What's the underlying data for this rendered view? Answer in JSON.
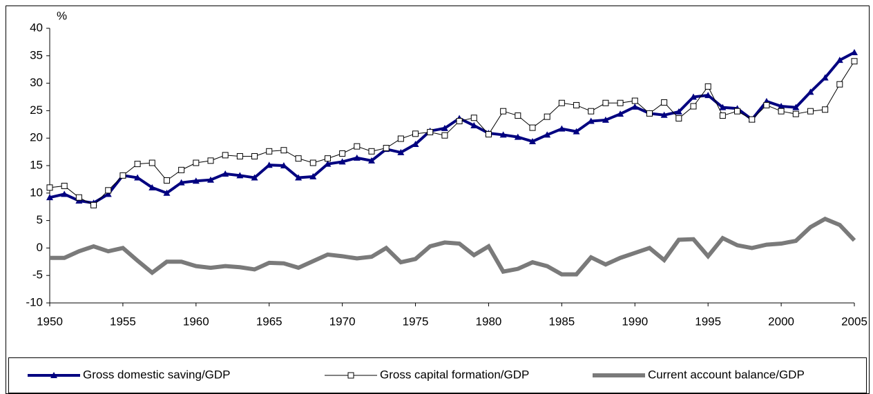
{
  "chart_data": {
    "type": "line",
    "y_label": "%",
    "x": [
      1950,
      1951,
      1952,
      1953,
      1954,
      1955,
      1956,
      1957,
      1958,
      1959,
      1960,
      1961,
      1962,
      1963,
      1964,
      1965,
      1966,
      1967,
      1968,
      1969,
      1970,
      1971,
      1972,
      1973,
      1974,
      1975,
      1976,
      1977,
      1978,
      1979,
      1980,
      1981,
      1982,
      1983,
      1984,
      1985,
      1986,
      1987,
      1988,
      1989,
      1990,
      1991,
      1992,
      1993,
      1994,
      1995,
      1996,
      1997,
      1998,
      1999,
      2000,
      2001,
      2002,
      2003,
      2004,
      2005
    ],
    "xlim": [
      1950,
      2005
    ],
    "xticks": [
      1950,
      1955,
      1960,
      1965,
      1970,
      1975,
      1980,
      1985,
      1990,
      1995,
      2000,
      2005
    ],
    "ylim": [
      -10,
      40
    ],
    "yticks": [
      -10,
      -5,
      0,
      5,
      10,
      15,
      20,
      25,
      30,
      35,
      40
    ],
    "legend": "bottom",
    "series": [
      {
        "name": "Gross domestic saving/GDP",
        "color": "#000080",
        "marker": "triangle",
        "values": [
          9.2,
          9.8,
          8.6,
          8.2,
          9.8,
          13.2,
          12.8,
          11.0,
          10.0,
          11.9,
          12.2,
          12.4,
          13.5,
          13.2,
          12.8,
          15.1,
          15.0,
          12.8,
          13.0,
          15.3,
          15.7,
          16.4,
          15.9,
          18.0,
          17.4,
          18.9,
          21.3,
          21.8,
          23.6,
          22.3,
          20.9,
          20.6,
          20.2,
          19.4,
          20.6,
          21.7,
          21.2,
          23.1,
          23.3,
          24.4,
          25.7,
          24.5,
          24.2,
          24.8,
          27.5,
          27.8,
          25.6,
          25.4,
          23.4,
          26.7,
          25.8,
          25.6,
          28.4,
          31.0,
          34.2,
          35.6
        ]
      },
      {
        "name": "Gross capital formation/GDP",
        "color": "#000000",
        "marker": "square",
        "values": [
          11.0,
          11.3,
          9.2,
          7.8,
          10.5,
          13.2,
          15.3,
          15.5,
          12.3,
          14.2,
          15.5,
          15.9,
          16.9,
          16.7,
          16.7,
          17.6,
          17.8,
          16.3,
          15.5,
          16.3,
          17.2,
          18.5,
          17.6,
          18.2,
          19.9,
          20.8,
          21.1,
          20.5,
          23.1,
          23.7,
          20.7,
          24.9,
          24.1,
          21.9,
          23.9,
          26.4,
          26.0,
          24.9,
          26.4,
          26.4,
          26.8,
          24.5,
          26.5,
          23.6,
          25.8,
          29.4,
          24.1,
          24.9,
          23.4,
          26.0,
          24.9,
          24.4,
          24.9,
          25.2,
          29.8,
          34.0
        ]
      },
      {
        "name": "Current account balance/GDP",
        "color": "#7a7a7a",
        "marker": "none",
        "values": [
          -1.8,
          -1.8,
          -0.6,
          0.3,
          -0.6,
          0.0,
          -2.3,
          -4.5,
          -2.5,
          -2.5,
          -3.3,
          -3.6,
          -3.3,
          -3.5,
          -3.9,
          -2.7,
          -2.8,
          -3.6,
          -2.4,
          -1.2,
          -1.5,
          -1.9,
          -1.6,
          0.0,
          -2.6,
          -2.0,
          0.3,
          1.0,
          0.8,
          -1.3,
          0.3,
          -4.3,
          -3.8,
          -2.6,
          -3.3,
          -4.8,
          -4.8,
          -1.7,
          -3.0,
          -1.8,
          -0.9,
          0.0,
          -2.2,
          1.5,
          1.6,
          -1.5,
          1.8,
          0.5,
          0.0,
          0.6,
          0.8,
          1.3,
          3.8,
          5.3,
          4.2,
          1.4
        ]
      }
    ]
  }
}
